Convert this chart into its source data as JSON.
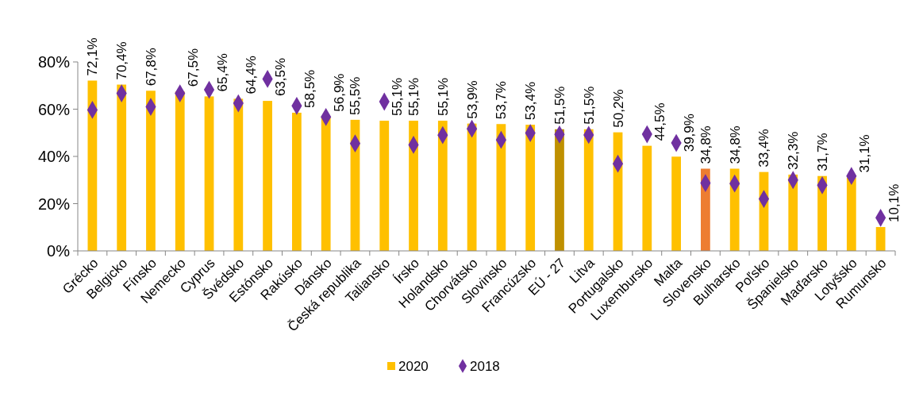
{
  "chart_data": {
    "type": "bar",
    "categories": [
      "Grécko",
      "Belgicko",
      "Fínsko",
      "Nemecko",
      "Cyprus",
      "Švédsko",
      "Estónsko",
      "Rakúsko",
      "Dánsko",
      "Česká republika",
      "Taliansko",
      "Írsko",
      "Holandsko",
      "Chorvátsko",
      "Slovinsko",
      "Francúzsko",
      "EÚ - 27",
      "Litva",
      "Portugalsko",
      "Luxembursko",
      "Malta",
      "Slovensko",
      "Bulharsko",
      "Poľsko",
      "Španielsko",
      "Maďarsko",
      "Lotyšsko",
      "Rumunsko"
    ],
    "series": [
      {
        "name": "2020",
        "type": "bar",
        "color": "#ffc000",
        "colors": [
          "#ffc000",
          "#ffc000",
          "#ffc000",
          "#ffc000",
          "#ffc000",
          "#ffc000",
          "#ffc000",
          "#ffc000",
          "#ffc000",
          "#ffc000",
          "#ffc000",
          "#ffc000",
          "#ffc000",
          "#ffc000",
          "#ffc000",
          "#ffc000",
          "#bf9000",
          "#ffc000",
          "#ffc000",
          "#ffc000",
          "#ffc000",
          "#ed7d31",
          "#ffc000",
          "#ffc000",
          "#ffc000",
          "#ffc000",
          "#ffc000",
          "#ffc000"
        ],
        "values": [
          72.1,
          70.4,
          67.8,
          67.5,
          65.4,
          64.4,
          63.5,
          58.5,
          56.9,
          55.5,
          55.1,
          55.1,
          55.1,
          53.9,
          53.7,
          53.4,
          51.5,
          51.5,
          50.2,
          44.5,
          39.9,
          34.8,
          34.8,
          33.4,
          32.3,
          31.7,
          31.1,
          10.1
        ],
        "value_labels": [
          "72,1%",
          "70,4%",
          "67,8%",
          "67,5%",
          "65,4%",
          "64,4%",
          "63,5%",
          "58,5%",
          "56,9%",
          "55,5%",
          "55,1%",
          "55,1%",
          "55,1%",
          "53,9%",
          "53,7%",
          "53,4%",
          "51,5%",
          "51,5%",
          "50,2%",
          "44,5%",
          "39,9%",
          "34,8%",
          "34,8%",
          "33,4%",
          "32,3%",
          "31,7%",
          "31,1%",
          "10,1%"
        ]
      },
      {
        "name": "2018",
        "type": "scatter",
        "color": "#7030a0",
        "values": [
          59.7,
          66.7,
          61.0,
          66.7,
          68.2,
          62.5,
          72.8,
          61.4,
          56.7,
          45.5,
          63.2,
          44.9,
          49.0,
          51.7,
          47.0,
          49.9,
          49.3,
          49.1,
          36.9,
          49.4,
          45.7,
          28.7,
          28.5,
          22.0,
          30.0,
          27.8,
          31.7,
          14.0
        ]
      }
    ],
    "marker": "diamond",
    "ylim": [
      0,
      80
    ],
    "yticks": [
      {
        "value": 0,
        "label": "0%"
      },
      {
        "value": 20,
        "label": "20%"
      },
      {
        "value": 40,
        "label": "40%"
      },
      {
        "value": 60,
        "label": "60%"
      },
      {
        "value": 80,
        "label": "80%"
      }
    ],
    "grid": false,
    "legend": "bottom"
  }
}
